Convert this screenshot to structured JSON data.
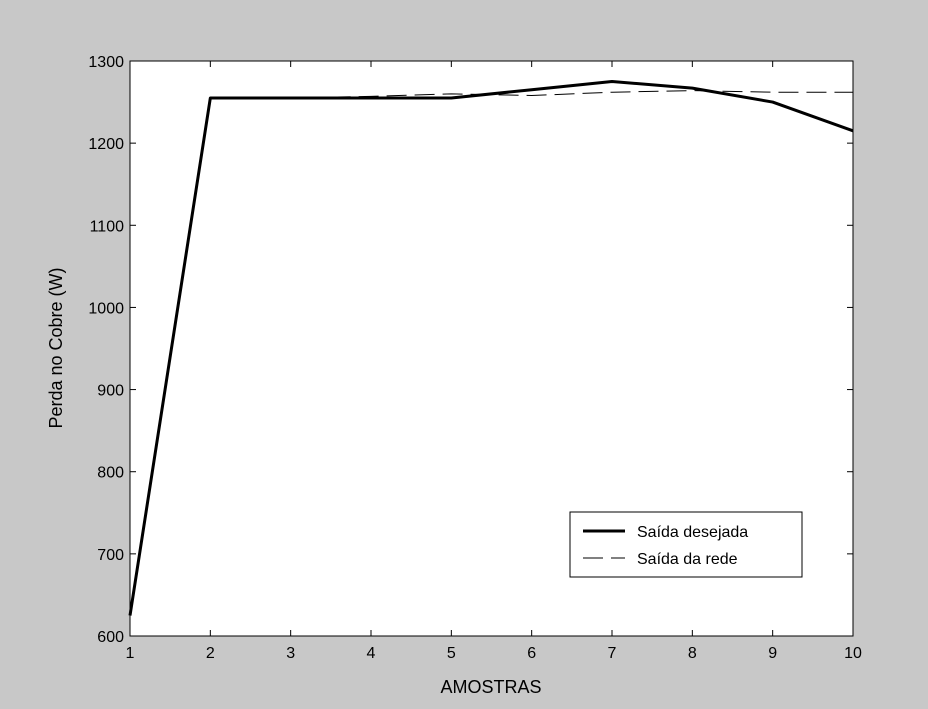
{
  "chart_data": {
    "type": "line",
    "title": "",
    "xlabel": "AMOSTRAS",
    "ylabel": "Perda no Cobre (W)",
    "xlim": [
      1,
      10
    ],
    "ylim": [
      600,
      1300
    ],
    "xticks": [
      1,
      2,
      3,
      4,
      5,
      6,
      7,
      8,
      9,
      10
    ],
    "yticks": [
      600,
      700,
      800,
      900,
      1000,
      1100,
      1200,
      1300
    ],
    "grid": false,
    "legend_position": "lower-right",
    "x": [
      1,
      2,
      3,
      4,
      5,
      6,
      7,
      8,
      9,
      10
    ],
    "series": [
      {
        "name": "Saída desejada",
        "style": "solid-thick",
        "color": "#000000",
        "values": [
          625,
          1255,
          1255,
          1255,
          1255,
          1265,
          1275,
          1267,
          1250,
          1215
        ]
      },
      {
        "name": "Saída da rede",
        "style": "dashed",
        "color": "#000000",
        "values": [
          625,
          1255,
          1255,
          1257,
          1260,
          1258,
          1262,
          1264,
          1262,
          1262
        ]
      }
    ]
  }
}
